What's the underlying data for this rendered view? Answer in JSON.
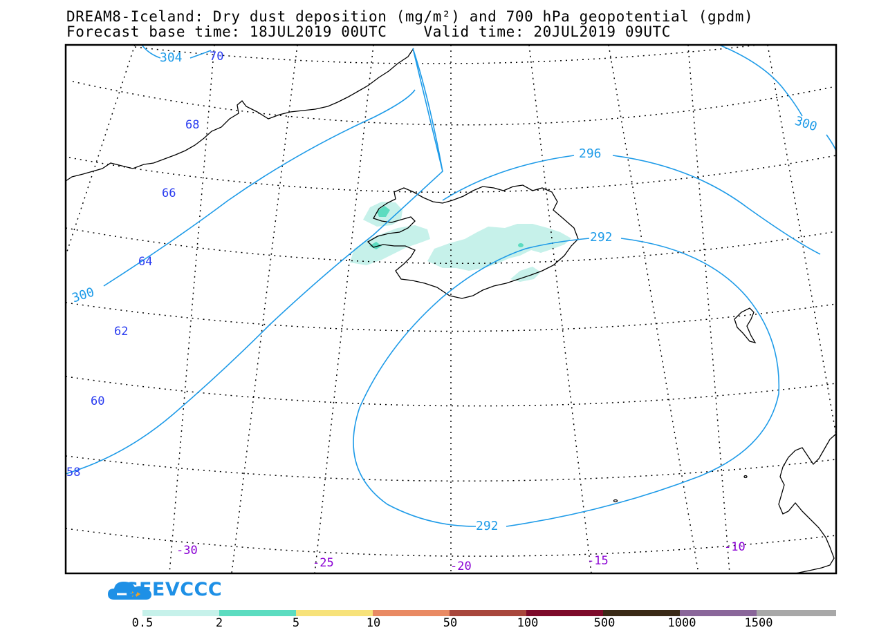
{
  "header": {
    "title_line1": "DREAM8-Iceland: Dry dust deposition (mg/m²) and 700 hPa geopotential (gpdm)",
    "title_line2": "Forecast base time: 18JUL2019 00UTC    Valid time: 20JUL2019 09UTC"
  },
  "map": {
    "latitude_labels": [
      "70",
      "68",
      "66",
      "64",
      "62",
      "60",
      "58"
    ],
    "longitude_labels": [
      "-30",
      "-25",
      "-20",
      "-15",
      "-10"
    ],
    "contour_labels": [
      "304",
      "300",
      "300",
      "296",
      "292",
      "292"
    ],
    "colors": {
      "graticule": "#000000",
      "coastline": "#000000",
      "contour": "#1e9be8",
      "lat_label": "#2a3cf0",
      "lon_label": "#8a00d4",
      "dust_light": "#c6f1ea",
      "dust_mid": "#5cdcc0"
    }
  },
  "logo": {
    "text": "SEEVCCC",
    "icon": "cloud-icon"
  },
  "legend": {
    "segments": [
      {
        "color": "#c6f1ea"
      },
      {
        "color": "#5cdcc0"
      },
      {
        "color": "#f7e27a"
      },
      {
        "color": "#e98a63"
      },
      {
        "color": "#a8473c"
      },
      {
        "color": "#7d0a2a"
      },
      {
        "color": "#3a2a16"
      },
      {
        "color": "#8a669a"
      },
      {
        "color": "#a8a8a8"
      }
    ],
    "labels": [
      "0.5",
      "2",
      "5",
      "10",
      "50",
      "100",
      "500",
      "1000",
      "1500"
    ]
  }
}
